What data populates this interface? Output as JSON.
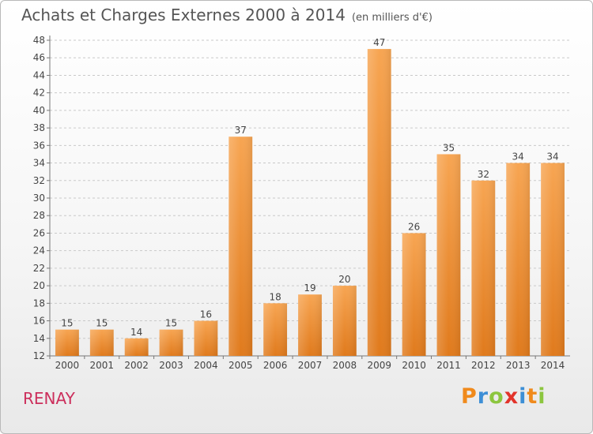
{
  "header": {
    "title": "Achats et Charges Externes 2000 à 2014",
    "unit": "(en milliers d'€)"
  },
  "footer": {
    "commune": "RENAY",
    "logo": "Proxiti"
  },
  "colors": {
    "bar_top": "#f7a552",
    "bar_bottom": "#e07a1c",
    "commune": "#cc2f5c",
    "grid": "#c9c9c9"
  },
  "chart_data": {
    "type": "bar",
    "title": "Achats et Charges Externes 2000 à 2014",
    "subtitle": "(en milliers d'€)",
    "xlabel": "",
    "ylabel": "",
    "categories": [
      "2000",
      "2001",
      "2002",
      "2003",
      "2004",
      "2005",
      "2006",
      "2007",
      "2008",
      "2009",
      "2010",
      "2011",
      "2012",
      "2013",
      "2014"
    ],
    "values": [
      15,
      15,
      14,
      15,
      16,
      37,
      18,
      19,
      20,
      47,
      26,
      35,
      32,
      34,
      34
    ],
    "ylim": [
      12,
      48
    ],
    "yticks": [
      12,
      14,
      16,
      18,
      20,
      22,
      24,
      26,
      28,
      30,
      32,
      34,
      36,
      38,
      40,
      42,
      44,
      46,
      48
    ],
    "grid": true,
    "grid_style": "dashed",
    "legend": "none"
  }
}
